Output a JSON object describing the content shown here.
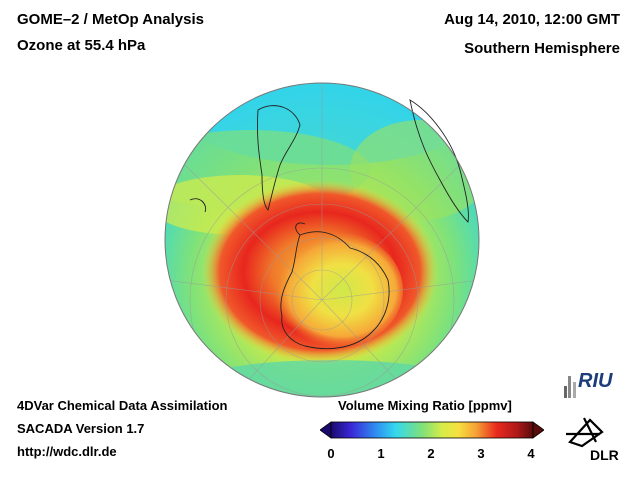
{
  "header": {
    "title_line1": "GOME–2 / MetOp Analysis",
    "title_line2": "Ozone at 55.4 hPa",
    "datetime": "Aug 14, 2010, 12:00 GMT",
    "hemisphere": "Southern Hemisphere"
  },
  "footer": {
    "method": "4DVar Chemical Data Assimilation",
    "version": "SACADA Version 1.7",
    "url": "http://wdc.dlr.de"
  },
  "colorbar": {
    "label": "Volume Mixing Ratio [ppmv]",
    "ticks": [
      "0",
      "1",
      "2",
      "3",
      "4"
    ],
    "range": [
      0,
      4
    ]
  },
  "logos": {
    "riu": "RIU",
    "dlr": "DLR"
  },
  "colors": {
    "ozone_hole_core": "#f2d23a",
    "high_ring": "#e61e1e",
    "mid": "#f6e641",
    "low": "#2fd1e8"
  }
}
